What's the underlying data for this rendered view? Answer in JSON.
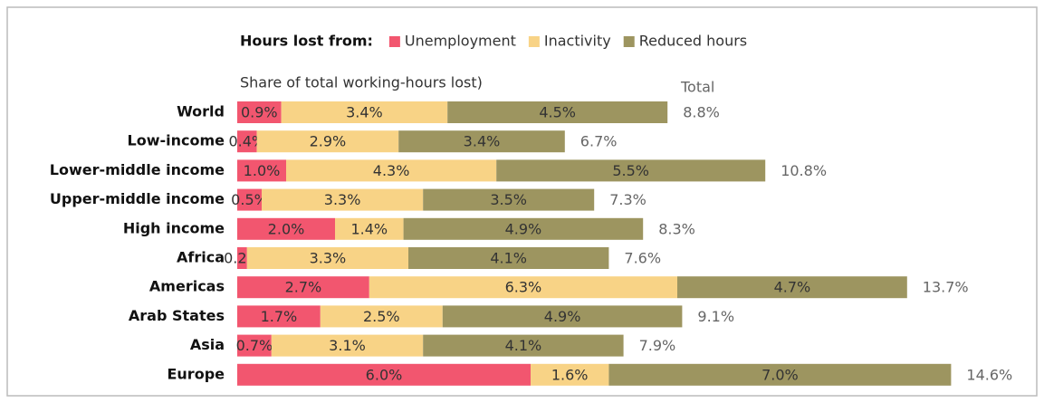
{
  "chart_data": {
    "type": "stacked-bar",
    "legend_title": "Hours lost from:",
    "subtitle": "Share of total working-hours lost)",
    "categories": [
      "World",
      "Low-income",
      "Lower-middle income",
      "Upper-middle income",
      "High income",
      "Africa",
      "Americas",
      "Arab States",
      "Asia",
      "Europe"
    ],
    "series": [
      {
        "name": "Unemployment",
        "color": "#f2566f",
        "values": [
          0.9,
          0.4,
          1.0,
          0.5,
          2.0,
          0.2,
          2.7,
          1.7,
          0.7,
          6.0
        ],
        "value_labels": [
          "0.9%",
          "0.4%",
          "1.0%",
          "0.5%",
          "2.0%",
          "0.2%",
          "2.7%",
          "1.7%",
          "0.7%",
          "6.0%"
        ]
      },
      {
        "name": "Inactivity",
        "color": "#f8d386",
        "values": [
          3.4,
          2.9,
          4.3,
          3.3,
          1.4,
          3.3,
          6.3,
          2.5,
          3.1,
          1.6
        ],
        "value_labels": [
          "3.4%",
          "2.9%",
          "4.3%",
          "3.3%",
          "1.4%",
          "3.3%",
          "6.3%",
          "2.5%",
          "3.1%",
          "1.6%"
        ]
      },
      {
        "name": "Reduced hours",
        "color": "#9d9560",
        "values": [
          4.5,
          3.4,
          5.5,
          3.5,
          4.9,
          4.1,
          4.7,
          4.9,
          4.1,
          7.0
        ],
        "value_labels": [
          "4.5%",
          "3.4%",
          "5.5%",
          "3.5%",
          "4.9%",
          "4.1%",
          "4.7%",
          "4.9%",
          "4.1%",
          "7.0%"
        ]
      }
    ],
    "totals": {
      "name": "Total",
      "values": [
        8.8,
        6.7,
        10.8,
        7.3,
        8.3,
        7.6,
        13.7,
        9.1,
        7.9,
        14.6
      ],
      "value_labels": [
        "8.8%",
        "6.7%",
        "10.8%",
        "7.3%",
        "8.3%",
        "7.6%",
        "13.7%",
        "9.1%",
        "7.9%",
        "14.6%"
      ]
    }
  }
}
